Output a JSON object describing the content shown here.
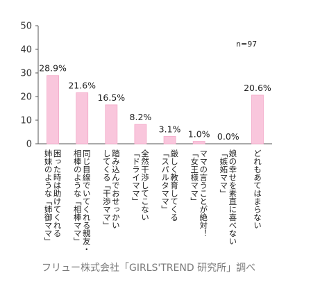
{
  "chart_data": {
    "type": "bar",
    "n_label": "n=97",
    "ylim": [
      0,
      50
    ],
    "yticks": [
      "0",
      "10",
      "20",
      "30",
      "40",
      "50"
    ],
    "bar_color": "#f9c6dc",
    "bar_edge_color": "#f4a9c8",
    "categories": [
      [
        "困った時は助けてくれる",
        "姉妹のような「姉御ママ」"
      ],
      [
        "同じ目線でいてくれる親友・",
        "相棒のような「相棒ママ」"
      ],
      [
        "踏み込んでおせっかい",
        "してくる「干渉ママ」"
      ],
      [
        "全然干渉してこない",
        "「ドライママ」"
      ],
      [
        "厳しく教育してくる",
        "「スパルタママ」"
      ],
      [
        "ママの言うことが絶対！",
        "「女王様ママ」"
      ],
      [
        "娘の幸せを素直に喜べない",
        "「嫉妬ママ」"
      ],
      [
        "どれもあてはまらない"
      ]
    ],
    "values": [
      28.9,
      21.6,
      16.5,
      8.2,
      3.1,
      1.0,
      0.0,
      20.6
    ],
    "value_labels": [
      "28.9%",
      "21.6%",
      "16.5%",
      "8.2%",
      "3.1%",
      "1.0%",
      "0.0%",
      "20.6%"
    ]
  },
  "source": "フリュー株式会社「GIRLS'TREND 研究所」調べ"
}
